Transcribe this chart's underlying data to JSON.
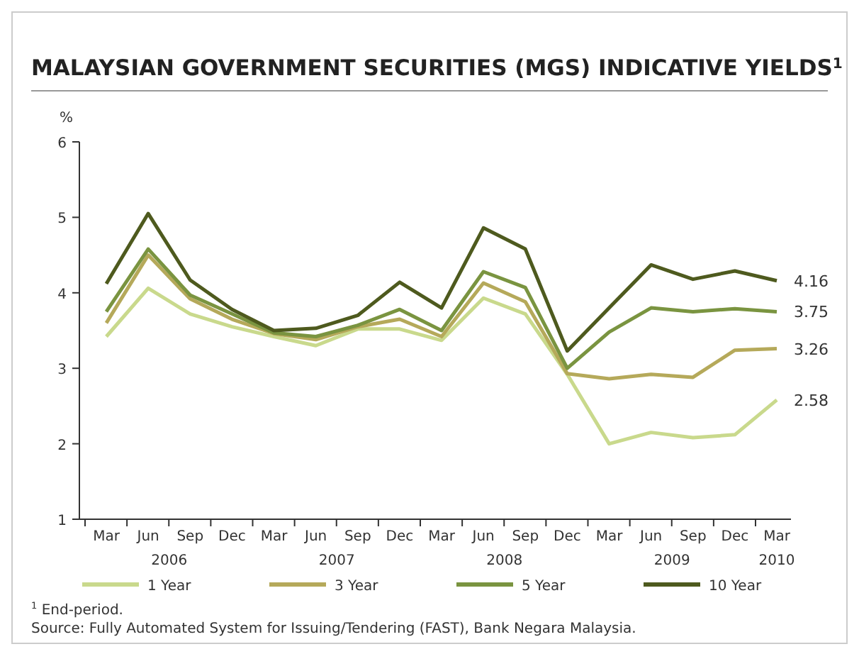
{
  "chart_data": {
    "type": "line",
    "title": "MALAYSIAN GOVERNMENT SECURITIES (MGS) INDICATIVE YIELDS$^{1}$",
    "ylabel": "%",
    "categories": [
      "Mar",
      "Jun",
      "Sep",
      "Dec",
      "Mar",
      "Jun",
      "Sep",
      "Dec",
      "Mar",
      "Jun",
      "Sep",
      "Dec",
      "Mar",
      "Jun",
      "Sep",
      "Dec",
      "Mar"
    ],
    "series": [
      {
        "name": "1 Year",
        "color": "#c9d98c",
        "values": [
          3.42,
          4.06,
          3.72,
          3.55,
          3.42,
          3.3,
          3.52,
          3.52,
          3.37,
          3.93,
          3.72,
          2.92,
          2.0,
          2.15,
          2.08,
          2.12,
          2.58
        ],
        "value_labels": [
          null,
          null,
          null,
          null,
          null,
          null,
          null,
          null,
          null,
          null,
          null,
          null,
          null,
          null,
          null,
          null,
          "2.58"
        ]
      },
      {
        "name": "3 Year",
        "color": "#b5a95a",
        "values": [
          3.6,
          4.5,
          3.92,
          3.65,
          3.46,
          3.38,
          3.55,
          3.65,
          3.42,
          4.13,
          3.88,
          2.93,
          2.86,
          2.92,
          2.88,
          3.24,
          3.26
        ],
        "value_labels": [
          null,
          null,
          null,
          null,
          null,
          null,
          null,
          null,
          null,
          null,
          null,
          null,
          null,
          null,
          null,
          null,
          "3.26"
        ]
      },
      {
        "name": "5 Year",
        "color": "#7a9440",
        "values": [
          3.75,
          4.58,
          3.97,
          3.72,
          3.47,
          3.42,
          3.57,
          3.78,
          3.5,
          4.28,
          4.07,
          3.0,
          3.48,
          3.8,
          3.75,
          3.79,
          3.75
        ],
        "value_labels": [
          null,
          null,
          null,
          null,
          null,
          null,
          null,
          null,
          null,
          null,
          null,
          null,
          null,
          null,
          null,
          null,
          "3.75"
        ]
      },
      {
        "name": "10 Year",
        "color": "#4e5a1e",
        "values": [
          4.12,
          5.05,
          4.17,
          3.78,
          3.5,
          3.53,
          3.7,
          4.14,
          3.8,
          4.86,
          4.58,
          3.23,
          3.8,
          4.37,
          4.18,
          4.29,
          4.16
        ],
        "value_labels": [
          null,
          null,
          null,
          null,
          null,
          null,
          null,
          null,
          null,
          null,
          null,
          null,
          null,
          null,
          null,
          null,
          "4.16"
        ]
      }
    ],
    "ylim": [
      1,
      6
    ],
    "yticks": [
      1,
      2,
      3,
      4,
      5,
      6
    ],
    "grid": false,
    "legend": "bottom",
    "marker": "none",
    "line_style": "solid",
    "annotations": [
      "2006",
      "2007",
      "2008",
      "2009",
      "2010",
      "$^{1}$ End-period.",
      "Source: Fully Automated System for Issuing/Tendering (FAST), Bank Negara Malaysia."
    ]
  }
}
